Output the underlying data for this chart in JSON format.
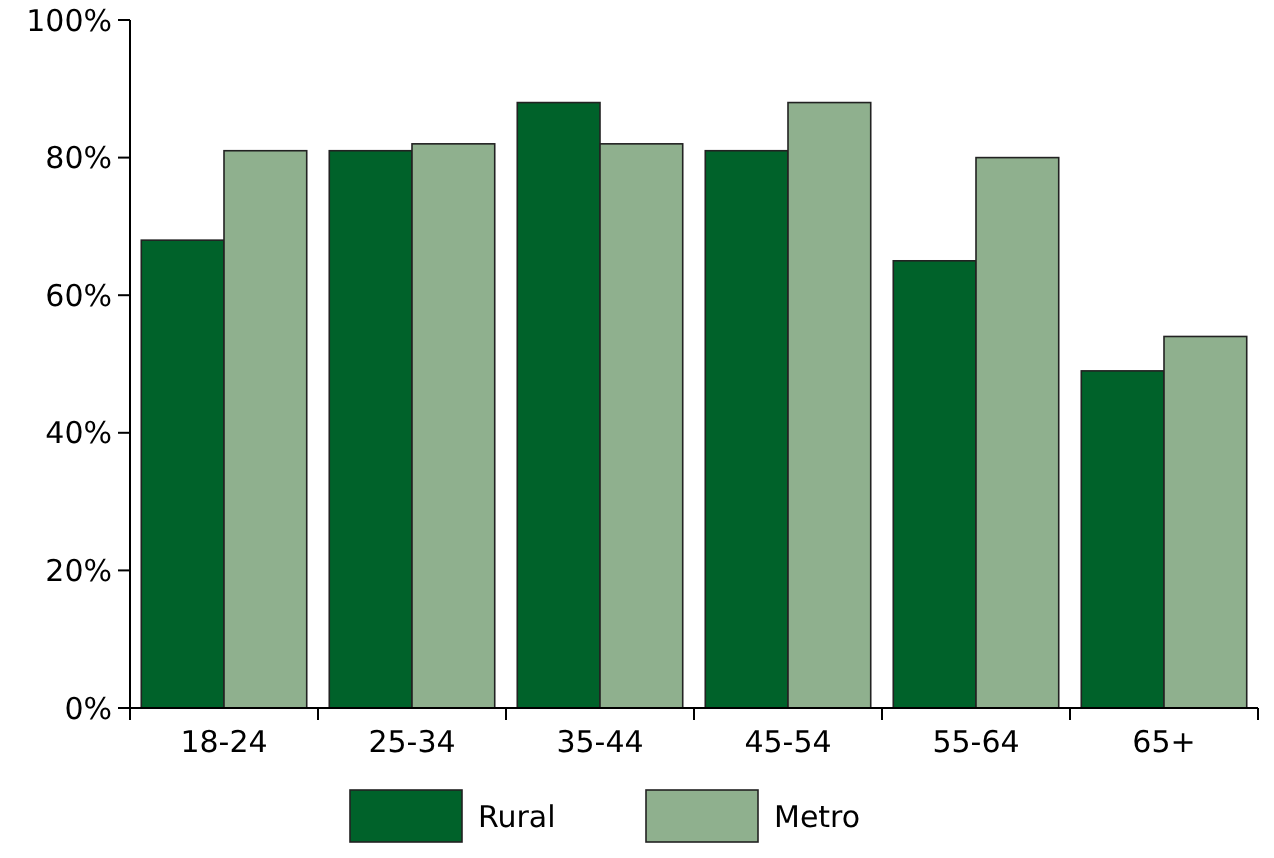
{
  "chart_data": {
    "type": "bar",
    "categories": [
      "18-24",
      "25-34",
      "35-44",
      "45-54",
      "55-64",
      "65+"
    ],
    "series": [
      {
        "name": "Rural",
        "color": "#00622a",
        "values": [
          68,
          81,
          88,
          81,
          65,
          49
        ]
      },
      {
        "name": "Metro",
        "color": "#8fb08e",
        "values": [
          81,
          82,
          82,
          88,
          80,
          54
        ]
      }
    ],
    "ylim": [
      0,
      100
    ],
    "yticks": [
      {
        "value": 0,
        "label": "0%"
      },
      {
        "value": 20,
        "label": "20%"
      },
      {
        "value": 40,
        "label": "40%"
      },
      {
        "value": 60,
        "label": "60%"
      },
      {
        "value": 80,
        "label": "80%"
      },
      {
        "value": 100,
        "label": "100%"
      }
    ],
    "grid": false,
    "legend": "bottom"
  }
}
